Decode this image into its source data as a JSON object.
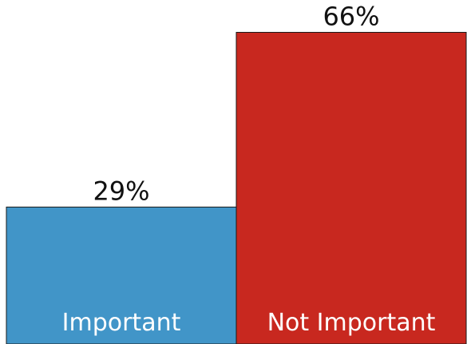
{
  "chart_data": {
    "type": "bar",
    "categories": [
      "Important",
      "Not Important"
    ],
    "values": [
      29,
      66
    ],
    "value_labels": [
      "29%",
      "66%"
    ],
    "colors": [
      "#4195c8",
      "#c8281f"
    ],
    "title": "",
    "xlabel": "",
    "ylabel": "",
    "ylim": [
      0,
      72
    ],
    "grid": false,
    "legend": "none"
  }
}
